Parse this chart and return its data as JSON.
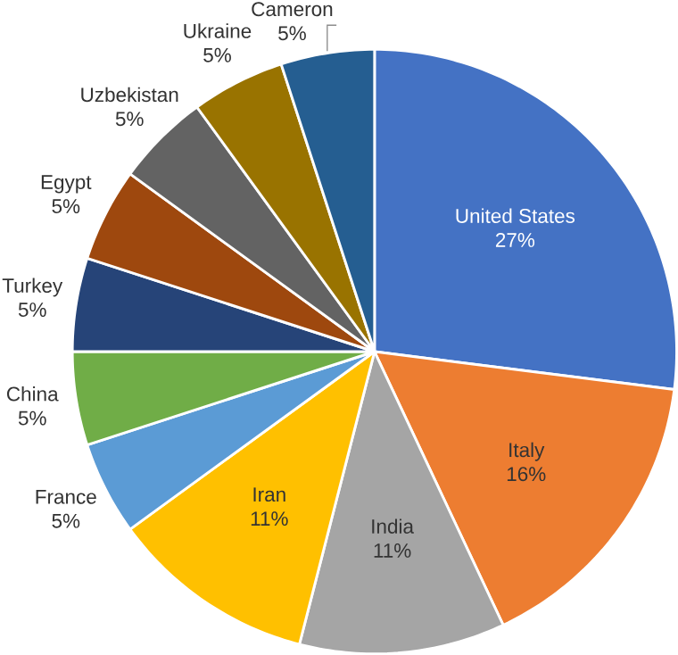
{
  "chart_data": {
    "type": "pie",
    "categories": [
      "United States",
      "Italy",
      "India",
      "Iran",
      "France",
      "China",
      "Turkey",
      "Egypt",
      "Uzbekistan",
      "Ukraine",
      "Cameron"
    ],
    "values": [
      27,
      16,
      11,
      11,
      5,
      5,
      5,
      5,
      5,
      5,
      5
    ],
    "value_labels": [
      "27%",
      "16%",
      "11%",
      "11%",
      "5%",
      "5%",
      "5%",
      "5%",
      "5%",
      "5%",
      "5%"
    ],
    "colors": [
      "#4472c4",
      "#ed7d31",
      "#a5a5a5",
      "#ffc000",
      "#5b9bd5",
      "#70ad47",
      "#264478",
      "#9e480e",
      "#636363",
      "#997300",
      "#255e91"
    ]
  }
}
